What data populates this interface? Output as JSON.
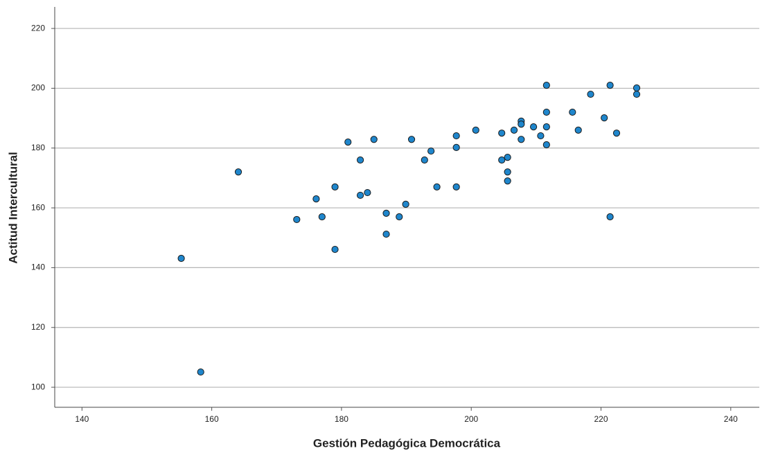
{
  "chart_data": {
    "type": "scatter",
    "x_label": "Gestión Pedagógica Democrática",
    "y_label": "Actitud Intercultural",
    "x": [
      155.3,
      158.3,
      164.1,
      173.1,
      176.1,
      177.0,
      179.0,
      179.0,
      181.0,
      182.9,
      182.9,
      184.0,
      185.0,
      186.9,
      186.9,
      188.9,
      189.9,
      190.8,
      192.8,
      193.8,
      194.7,
      197.7,
      197.7,
      197.7,
      200.7,
      204.7,
      204.7,
      205.6,
      205.6,
      205.6,
      206.6,
      207.7,
      207.7,
      207.7,
      209.6,
      210.7,
      211.6,
      211.6,
      211.6,
      211.6,
      215.6,
      216.5,
      218.4,
      220.5,
      221.4,
      221.4,
      222.4,
      225.5,
      225.5
    ],
    "values": [
      143.1,
      105.1,
      172.0,
      156.1,
      163.0,
      157.0,
      167.0,
      146.1,
      182.0,
      176.0,
      164.2,
      165.1,
      182.9,
      158.2,
      151.2,
      157.0,
      161.2,
      182.9,
      176.0,
      179.0,
      167.0,
      184.1,
      180.2,
      167.0,
      186.0,
      185.0,
      176.0,
      176.9,
      172.0,
      169.0,
      186.0,
      189.0,
      188.0,
      182.9,
      187.1,
      184.1,
      201.0,
      192.0,
      187.1,
      181.1,
      192.0,
      186.0,
      198.0,
      190.1,
      201.0,
      157.0,
      185.0,
      200.1,
      198.0
    ],
    "color": "#1f86cc",
    "xlim": [
      135.8,
      244.4
    ],
    "ylim": [
      93.3,
      227.2
    ],
    "xticks": [
      140,
      160,
      180,
      200,
      220,
      240
    ],
    "yticks": [
      100,
      120,
      140,
      160,
      180,
      200,
      220
    ],
    "grid": true
  }
}
